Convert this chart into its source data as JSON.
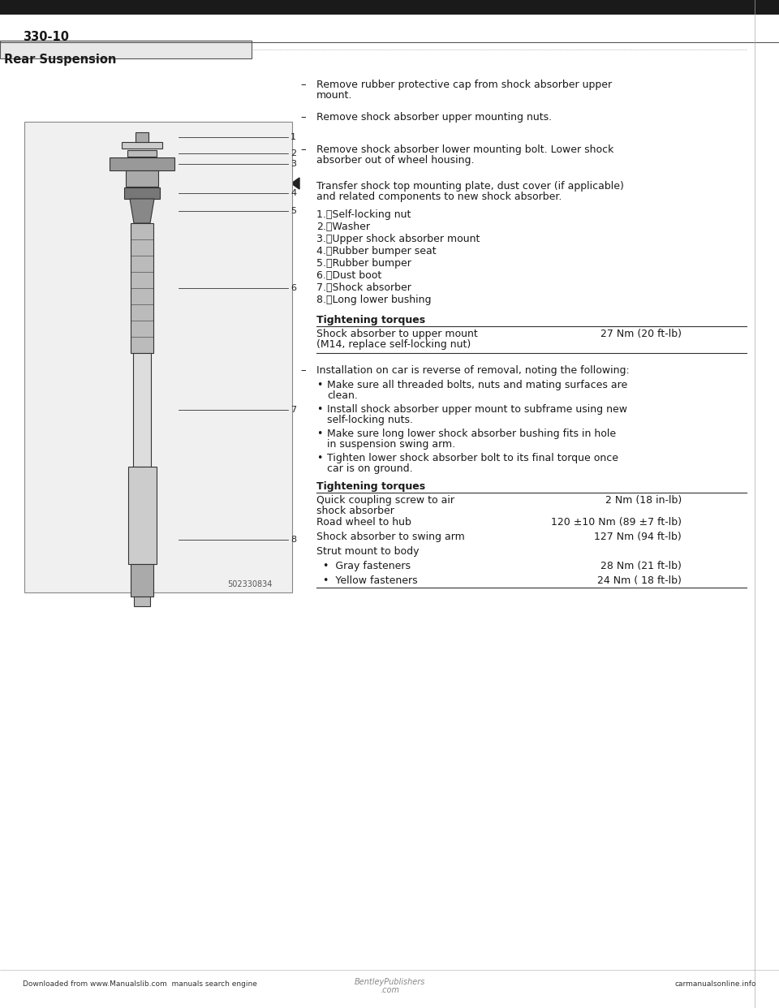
{
  "page_number": "330-10",
  "section_title": "Rear Suspension",
  "bg_color": "#ffffff",
  "text_color": "#1a1a1a",
  "dash_items": [
    "Remove rubber protective cap from shock absorber upper\nmount.",
    "Remove shock absorber upper mounting nuts.",
    "Remove shock absorber lower mounting bolt. Lower shock\nabsorber out of wheel housing."
  ],
  "arrow_item": "Transfer shock top mounting plate, dust cover (if applicable)\nand related components to new shock absorber.",
  "numbered_items": [
    "Self-locking nut",
    "Washer",
    "Upper shock absorber mount",
    "Rubber bumper seat",
    "Rubber bumper",
    "Dust boot",
    "Shock absorber",
    "Long lower bushing"
  ],
  "tightening_torques_1_title": "Tightening torques",
  "tightening_torques_1": [
    [
      "Shock absorber to upper mount\n(M14, replace self-locking nut)",
      "27 Nm (20 ft-lb)"
    ]
  ],
  "dash_item_2": "Installation on car is reverse of removal, noting the following:",
  "bullet_items": [
    "Make sure all threaded bolts, nuts and mating surfaces are\nclean.",
    "Install shock absorber upper mount to subframe using new\nself-locking nuts.",
    "Make sure long lower shock absorber bushing fits in hole\nin suspension swing arm.",
    "Tighten lower shock absorber bolt to its final torque once\ncar is on ground."
  ],
  "tightening_torques_2_title": "Tightening torques",
  "tightening_torques_2": [
    [
      "Quick coupling screw to air\nshock absorber",
      "2 Nm (18 in-lb)"
    ],
    [
      "Road wheel to hub",
      "120 ±10 Nm (89 ±7 ft-lb)"
    ],
    [
      "Shock absorber to swing arm",
      "127 Nm (94 ft-lb)"
    ],
    [
      "Strut mount to body",
      ""
    ],
    [
      "  •  Gray fasteners",
      "28 Nm (21 ft-lb)"
    ],
    [
      "  •  Yellow fasteners",
      "24 Nm ( 18 ft-lb)"
    ]
  ],
  "footer_left": "Downloaded from www.Manualslib.com  manuals search engine",
  "footer_right": "carmanualsonline.info",
  "footer_center": "BentleyPublishers\n.com",
  "image_label": "502330834",
  "diagram_labels": [
    "1",
    "2",
    "3",
    "4",
    "5",
    "6",
    "7",
    "8"
  ]
}
